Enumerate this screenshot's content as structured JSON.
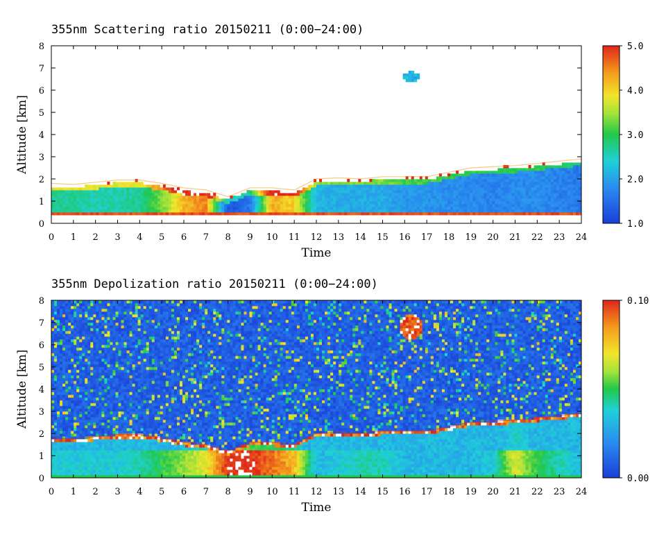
{
  "chart_data": [
    {
      "type": "heatmap",
      "title": "355nm Scattering ratio  20150211 (0:00−24:00)",
      "xlabel": "Time",
      "ylabel": "Altitude [km]",
      "xlim": [
        0,
        24
      ],
      "ylim": [
        0,
        8
      ],
      "x_ticks": [
        "0",
        "1",
        "2",
        "3",
        "4",
        "5",
        "6",
        "7",
        "8",
        "9",
        "10",
        "11",
        "12",
        "13",
        "14",
        "15",
        "16",
        "17",
        "18",
        "19",
        "20",
        "21",
        "22",
        "23",
        "24"
      ],
      "y_ticks": [
        "0",
        "1",
        "2",
        "3",
        "4",
        "5",
        "6",
        "7",
        "8"
      ],
      "colorbar": {
        "min": 1.0,
        "max": 5.0,
        "labels": [
          "1.0",
          "2.0",
          "3.0",
          "4.0",
          "5.0"
        ]
      },
      "features": [
        {
          "name": "boundary-layer",
          "x": [
            0,
            1,
            2,
            3,
            4,
            5,
            6,
            7,
            8,
            9,
            10,
            11,
            12,
            13,
            14,
            15,
            16,
            17,
            18,
            19,
            20,
            21,
            22,
            23,
            24
          ],
          "top_km": [
            1.8,
            1.75,
            1.85,
            1.95,
            1.95,
            1.8,
            1.6,
            1.5,
            1.2,
            1.6,
            1.6,
            1.5,
            2.0,
            2.05,
            2.0,
            2.1,
            2.1,
            2.1,
            2.3,
            2.5,
            2.55,
            2.6,
            2.7,
            2.8,
            2.9
          ],
          "core_value": [
            2.7,
            2.7,
            2.6,
            2.6,
            2.7,
            3.3,
            4.2,
            4.5,
            1.2,
            1.6,
            4.3,
            4.0,
            2.2,
            2.1,
            2.1,
            2.1,
            1.9,
            1.9,
            1.8,
            1.8,
            1.7,
            1.8,
            1.8,
            1.7,
            1.6
          ]
        },
        {
          "name": "elevated-cloud",
          "time": 16.3,
          "altitude_km": 6.6,
          "value": 2.2
        }
      ]
    },
    {
      "type": "heatmap",
      "title": "355nm Depolization ratio  20150211 (0:00−24:00)",
      "xlabel": "Time",
      "ylabel": "Altitude [km]",
      "xlim": [
        0,
        24
      ],
      "ylim": [
        0,
        8
      ],
      "x_ticks": [
        "0",
        "1",
        "2",
        "3",
        "4",
        "5",
        "6",
        "7",
        "8",
        "9",
        "10",
        "11",
        "12",
        "13",
        "14",
        "15",
        "16",
        "17",
        "18",
        "19",
        "20",
        "21",
        "22",
        "23",
        "24"
      ],
      "y_ticks": [
        "0",
        "1",
        "2",
        "3",
        "4",
        "5",
        "6",
        "7",
        "8"
      ],
      "colorbar": {
        "min": 0.0,
        "max": 0.1,
        "labels": [
          "0.00",
          "0.10"
        ]
      },
      "features": [
        {
          "name": "boundary-layer",
          "x": [
            0,
            1,
            2,
            3,
            4,
            5,
            6,
            7,
            8,
            9,
            10,
            11,
            12,
            13,
            14,
            15,
            16,
            17,
            18,
            19,
            20,
            21,
            22,
            23,
            24
          ],
          "top_km": [
            1.8,
            1.75,
            1.85,
            1.95,
            1.95,
            1.8,
            1.6,
            1.5,
            1.2,
            1.6,
            1.6,
            1.5,
            2.0,
            2.05,
            2.0,
            2.1,
            2.1,
            2.1,
            2.3,
            2.5,
            2.55,
            2.6,
            2.7,
            2.8,
            2.9
          ],
          "core_value": [
            0.035,
            0.035,
            0.035,
            0.035,
            0.04,
            0.05,
            0.06,
            0.07,
            0.1,
            0.1,
            0.09,
            0.08,
            0.03,
            0.035,
            0.04,
            0.04,
            0.03,
            0.03,
            0.03,
            0.03,
            0.035,
            0.07,
            0.05,
            0.04,
            0.03
          ]
        },
        {
          "name": "elevated-cloud",
          "time": 16.3,
          "altitude_km": 6.8,
          "value": 0.1
        }
      ]
    }
  ]
}
